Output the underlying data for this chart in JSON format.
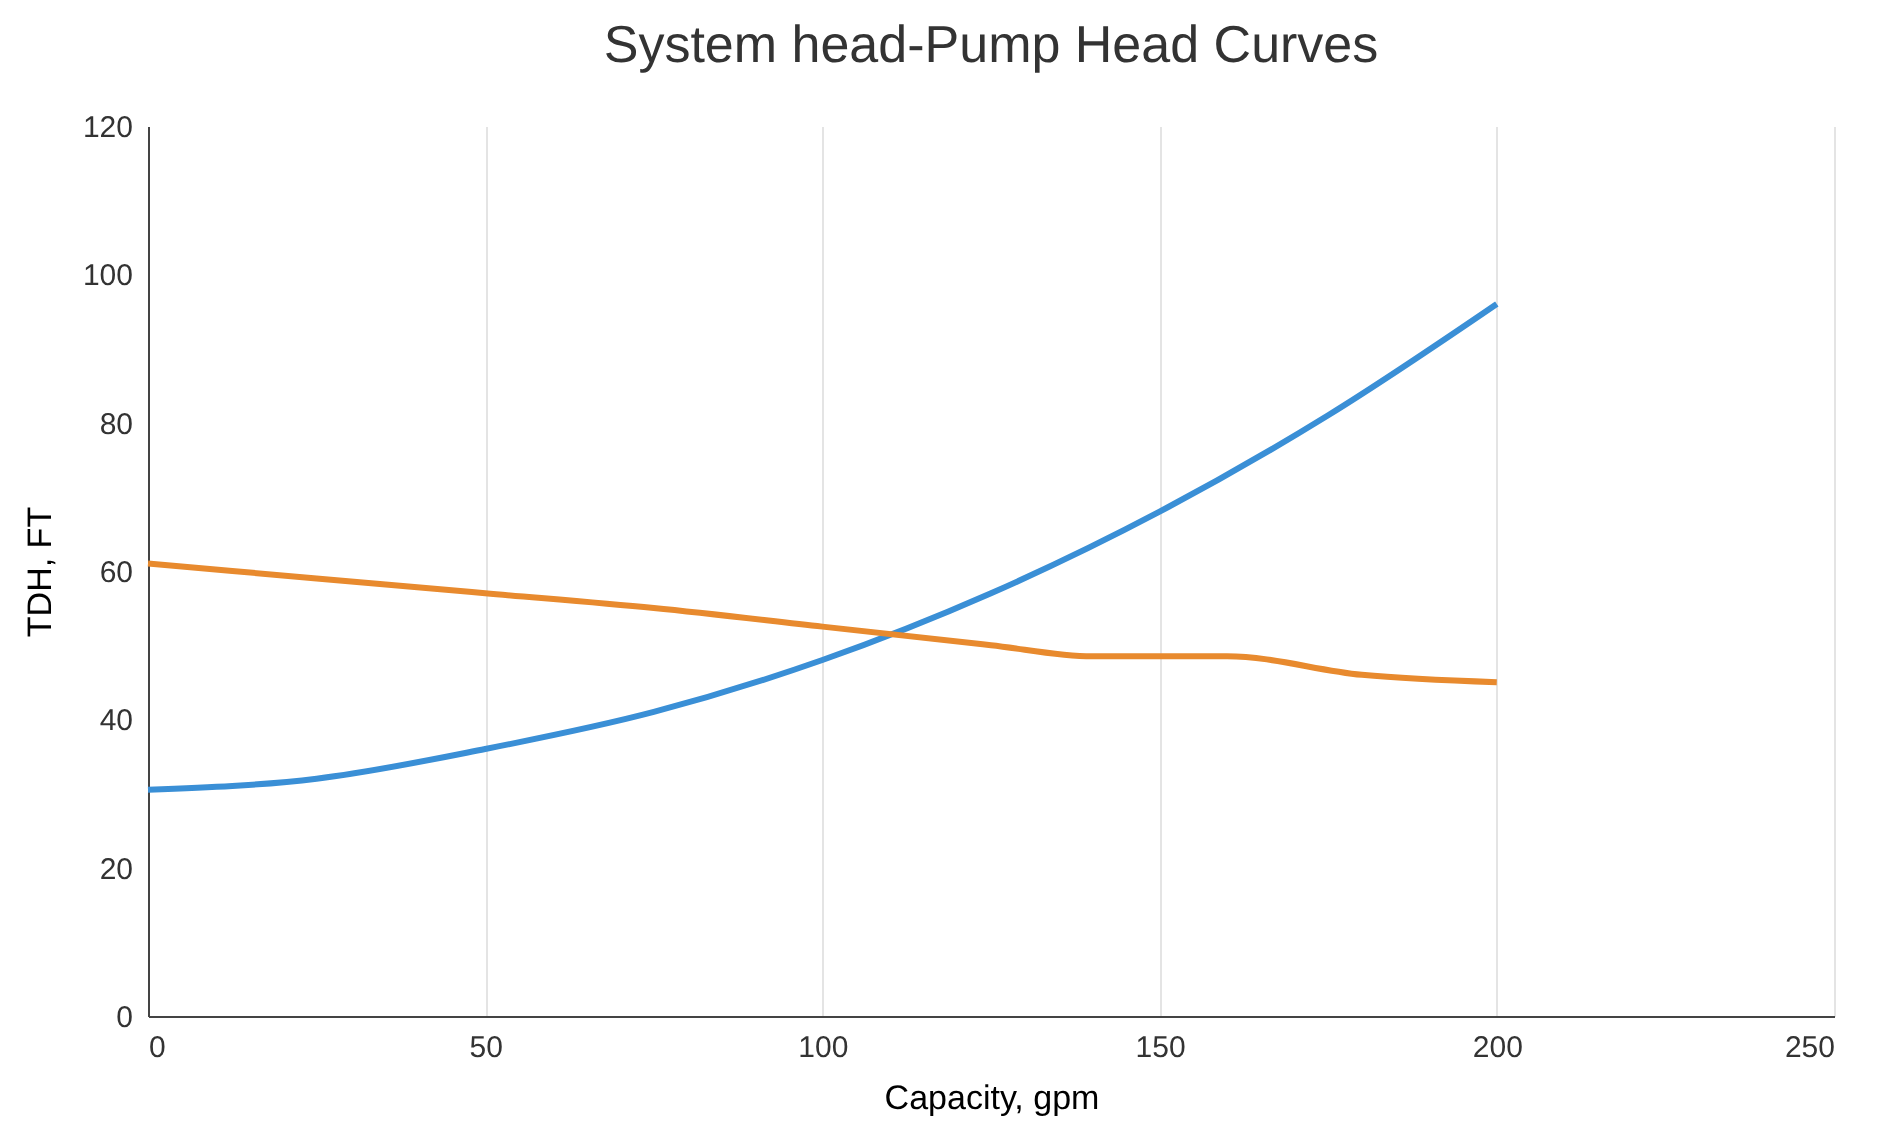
{
  "chart_data": {
    "type": "line",
    "title": "System head-Pump Head Curves",
    "xlabel": "Capacity, gpm",
    "ylabel": "TDH, FT",
    "xlim": [
      0,
      250
    ],
    "xticks": [
      0,
      50,
      100,
      150,
      200,
      250
    ],
    "ylim": [
      0,
      120
    ],
    "yticks": [
      0,
      20,
      40,
      60,
      80,
      100,
      120
    ],
    "grid": "x",
    "legend": false,
    "series": [
      {
        "color": "#3a8fd6",
        "x": [
          0,
          25,
          50,
          75,
          100,
          125,
          150,
          175,
          200
        ],
        "values": [
          30.5,
          32,
          36,
          41,
          48,
          57,
          68,
          81,
          96
        ]
      },
      {
        "color": "#e88a2e",
        "x": [
          0,
          25,
          50,
          75,
          100,
          125,
          140,
          160,
          180,
          200
        ],
        "values": [
          61,
          59,
          57,
          55,
          52.5,
          50,
          48.5,
          48.5,
          46,
          45
        ]
      }
    ]
  }
}
